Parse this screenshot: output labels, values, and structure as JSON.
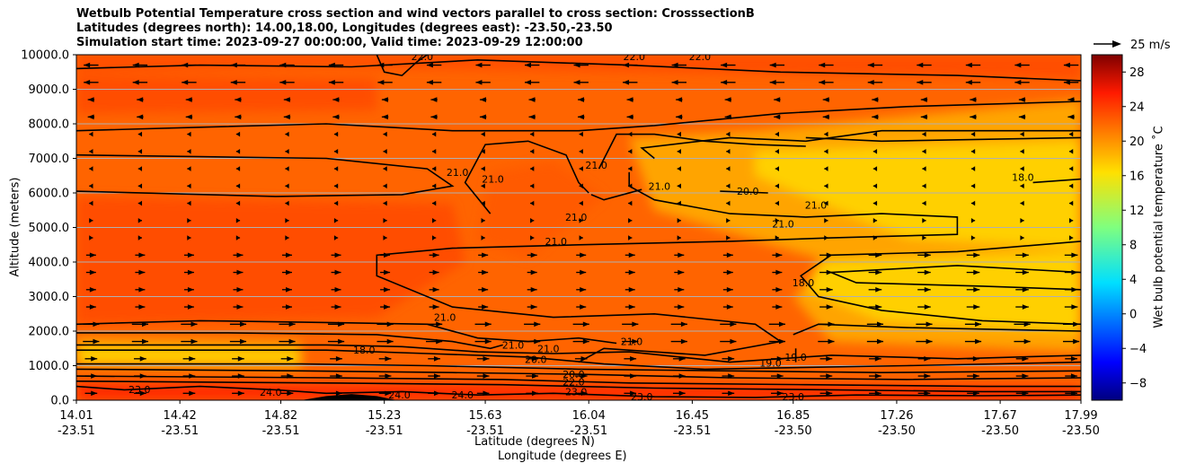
{
  "title_lines": [
    "Wetbulb Potential Temperature cross section and wind vectors parallel to cross section: CrosssectionB",
    "Latitudes (degrees north): 14.00,18.00, Longitudes (degrees east): -23.50,-23.50",
    "Simulation start time: 2023-09-27 00:00:00, Valid time: 2023-09-29 12:00:00"
  ],
  "chart_data": {
    "type": "heatmap",
    "xlabel_lat": "Latitude (degrees N)",
    "xlabel_lon": "Longitude (degrees E)",
    "ylabel": "Altitude (meters)",
    "colorbar_label": "Wet bulb potential temperature $^\\circ$C",
    "colorbar_label_display": "Wet bulb potential temperature ˚C",
    "colorbar_range": [
      -10,
      30
    ],
    "colorbar_ticks": [
      -8,
      -4,
      0,
      4,
      8,
      12,
      16,
      20,
      24,
      28
    ],
    "colormap": "jet",
    "vector_key_label": "25 m/s",
    "ylim": [
      0,
      10000
    ],
    "yticks": [
      0,
      1000,
      2000,
      3000,
      4000,
      5000,
      6000,
      7000,
      8000,
      9000,
      10000
    ],
    "ytick_labels": [
      "0.0",
      "1000.0",
      "2000.0",
      "3000.0",
      "4000.0",
      "5000.0",
      "6000.0",
      "7000.0",
      "8000.0",
      "9000.0",
      "10000.0"
    ],
    "xlim": [
      14.01,
      17.99
    ],
    "xticks": [
      {
        "lat": "14.01",
        "lon": "-23.51",
        "pos": 14.01
      },
      {
        "lat": "14.42",
        "lon": "-23.51",
        "pos": 14.42
      },
      {
        "lat": "14.82",
        "lon": "-23.51",
        "pos": 14.82
      },
      {
        "lat": "15.23",
        "lon": "-23.51",
        "pos": 15.23
      },
      {
        "lat": "15.63",
        "lon": "-23.51",
        "pos": 15.63
      },
      {
        "lat": "16.04",
        "lon": "-23.51",
        "pos": 16.04
      },
      {
        "lat": "16.45",
        "lon": "-23.51",
        "pos": 16.45
      },
      {
        "lat": "16.85",
        "lon": "-23.50",
        "pos": 16.85
      },
      {
        "lat": "17.26",
        "lon": "-23.50",
        "pos": 17.26
      },
      {
        "lat": "17.67",
        "lon": "-23.50",
        "pos": 17.67
      },
      {
        "lat": "17.99",
        "lon": "-23.50",
        "pos": 17.99
      }
    ],
    "grid": "horizontal",
    "contour_labels": [
      {
        "text": "22.0",
        "x": 15.38,
        "y": 9950
      },
      {
        "text": "22.0",
        "x": 16.22,
        "y": 9950
      },
      {
        "text": "22.0",
        "x": 16.48,
        "y": 9950
      },
      {
        "text": "21.0",
        "x": 15.52,
        "y": 6600
      },
      {
        "text": "21.0",
        "x": 15.66,
        "y": 6400
      },
      {
        "text": "21.0",
        "x": 16.07,
        "y": 6800
      },
      {
        "text": "21.0",
        "x": 16.32,
        "y": 6200
      },
      {
        "text": "20.0",
        "x": 16.67,
        "y": 6050
      },
      {
        "text": "21.0",
        "x": 16.94,
        "y": 5650
      },
      {
        "text": "18.0",
        "x": 17.76,
        "y": 6450
      },
      {
        "text": "21.0",
        "x": 15.99,
        "y": 5300
      },
      {
        "text": "21.0",
        "x": 15.91,
        "y": 4600
      },
      {
        "text": "21.0",
        "x": 16.81,
        "y": 5100
      },
      {
        "text": "18.0",
        "x": 16.89,
        "y": 3400
      },
      {
        "text": "21.0",
        "x": 15.47,
        "y": 2400
      },
      {
        "text": "21.0",
        "x": 16.21,
        "y": 1700
      },
      {
        "text": "21.0",
        "x": 15.74,
        "y": 1600
      },
      {
        "text": "21.0",
        "x": 15.88,
        "y": 1500
      },
      {
        "text": "20.0",
        "x": 15.83,
        "y": 1180
      },
      {
        "text": "18.0",
        "x": 15.15,
        "y": 1450
      },
      {
        "text": "19.0",
        "x": 16.76,
        "y": 1080
      },
      {
        "text": "19.0",
        "x": 16.86,
        "y": 1250
      },
      {
        "text": "20.0",
        "x": 15.98,
        "y": 750
      },
      {
        "text": "22.0",
        "x": 15.98,
        "y": 530
      },
      {
        "text": "23.0",
        "x": 15.99,
        "y": 250
      },
      {
        "text": "23.0",
        "x": 14.26,
        "y": 310
      },
      {
        "text": "24.0",
        "x": 14.78,
        "y": 230
      },
      {
        "text": "24.0",
        "x": 15.29,
        "y": 150
      },
      {
        "text": "24.0",
        "x": 15.54,
        "y": 150
      },
      {
        "text": "23.0",
        "x": 16.25,
        "y": 100
      },
      {
        "text": "23.0",
        "x": 16.85,
        "y": 100
      }
    ]
  },
  "colors": {
    "background_orange": "#ff6400",
    "warm_orange": "#ff4e00",
    "amber": "#ffa400",
    "yellow": "#ffd000",
    "red": "#ff2c00",
    "contour": "#000000",
    "grid": "#b0b0b0"
  }
}
